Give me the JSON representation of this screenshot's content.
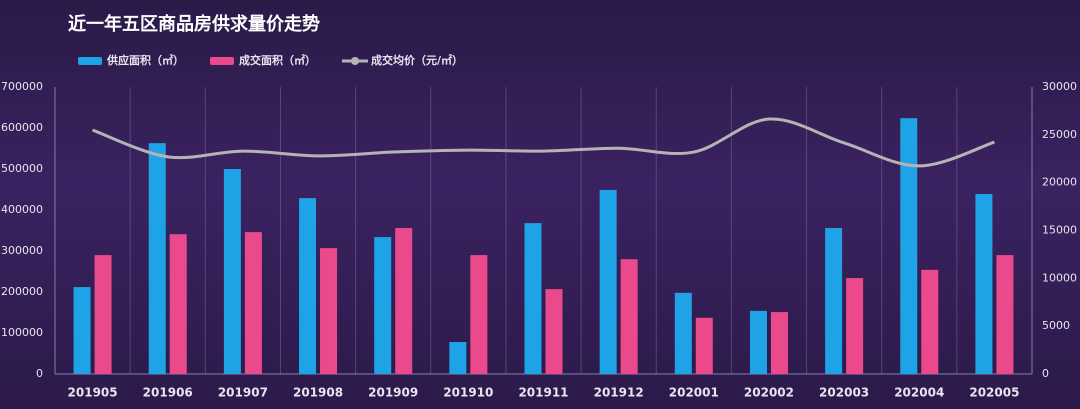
{
  "chart_data": {
    "type": "bar",
    "title": "近一年五区商品房供求量价走势",
    "categories": [
      "201905",
      "201906",
      "201907",
      "201908",
      "201909",
      "201910",
      "201911",
      "201912",
      "202001",
      "202002",
      "202003",
      "202004",
      "202005"
    ],
    "series": [
      {
        "name": "供应面积（㎡）",
        "type": "bar",
        "color": "#1ea3e6",
        "values": [
          212000,
          563000,
          500000,
          429000,
          334000,
          78000,
          368000,
          449000,
          198000,
          154000,
          356000,
          624000,
          439000
        ]
      },
      {
        "name": "成交面积（㎡）",
        "type": "bar",
        "color": "#ea4a8c",
        "values": [
          290000,
          341000,
          346000,
          307000,
          356000,
          290000,
          207000,
          280000,
          137000,
          151000,
          234000,
          254000,
          290000
        ]
      },
      {
        "name": "成交均价（元/㎡）",
        "type": "line",
        "color": "#b4b4b4",
        "axis": "y2",
        "values": [
          25500,
          22700,
          23300,
          22800,
          23200,
          23400,
          23300,
          23600,
          23200,
          26650,
          24150,
          21750,
          24250
        ]
      }
    ],
    "ylim": [
      0,
      700000
    ],
    "yticks": [
      0,
      100000,
      200000,
      300000,
      400000,
      500000,
      600000,
      700000
    ],
    "y2lim": [
      0,
      30000
    ],
    "y2ticks": [
      0,
      5000,
      10000,
      15000,
      20000,
      25000,
      30000
    ],
    "grid": true,
    "legend": "top-left"
  }
}
